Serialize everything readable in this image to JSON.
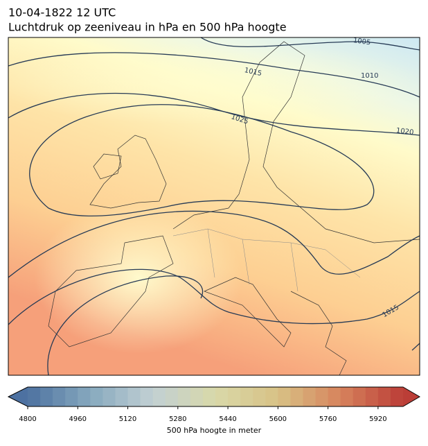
{
  "header": {
    "title": "10-04-1822 12 UTC",
    "subtitle": "Luchtdruk op zeeniveau in hPa en 500 hPa hoogte"
  },
  "map": {
    "contour_labels": [
      "1005",
      "1010",
      "1015",
      "1020",
      "1025",
      "1015"
    ]
  },
  "colorbar": {
    "range": [
      4800,
      6000
    ],
    "ticks": [
      4800,
      4960,
      5120,
      5280,
      5440,
      5600,
      5760,
      5920
    ],
    "label": "500 hPa hoogte in meter"
  }
}
